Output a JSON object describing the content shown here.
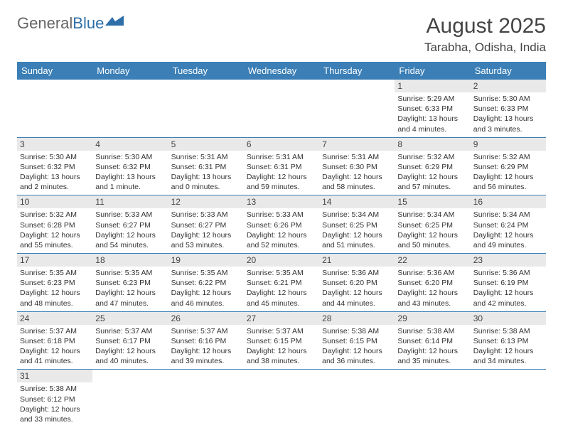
{
  "logo": {
    "general": "General",
    "blue": "Blue"
  },
  "title": "August 2025",
  "location": "Tarabha, Odisha, India",
  "colors": {
    "header_bg": "#3b7fb6",
    "header_text": "#ffffff",
    "daynum_bg": "#e9e9e9",
    "row_border": "#3b7fb6",
    "logo_blue": "#2f6fa8"
  },
  "typography": {
    "title_fontsize": 30,
    "location_fontsize": 17,
    "dayhead_fontsize": 13,
    "daynum_fontsize": 12,
    "body_fontsize": 10.5
  },
  "days": [
    "Sunday",
    "Monday",
    "Tuesday",
    "Wednesday",
    "Thursday",
    "Friday",
    "Saturday"
  ],
  "weeks": [
    [
      {
        "n": "",
        "sr": "",
        "ss": "",
        "dl": ""
      },
      {
        "n": "",
        "sr": "",
        "ss": "",
        "dl": ""
      },
      {
        "n": "",
        "sr": "",
        "ss": "",
        "dl": ""
      },
      {
        "n": "",
        "sr": "",
        "ss": "",
        "dl": ""
      },
      {
        "n": "",
        "sr": "",
        "ss": "",
        "dl": ""
      },
      {
        "n": "1",
        "sr": "Sunrise: 5:29 AM",
        "ss": "Sunset: 6:33 PM",
        "dl": "Daylight: 13 hours and 4 minutes."
      },
      {
        "n": "2",
        "sr": "Sunrise: 5:30 AM",
        "ss": "Sunset: 6:33 PM",
        "dl": "Daylight: 13 hours and 3 minutes."
      }
    ],
    [
      {
        "n": "3",
        "sr": "Sunrise: 5:30 AM",
        "ss": "Sunset: 6:32 PM",
        "dl": "Daylight: 13 hours and 2 minutes."
      },
      {
        "n": "4",
        "sr": "Sunrise: 5:30 AM",
        "ss": "Sunset: 6:32 PM",
        "dl": "Daylight: 13 hours and 1 minute."
      },
      {
        "n": "5",
        "sr": "Sunrise: 5:31 AM",
        "ss": "Sunset: 6:31 PM",
        "dl": "Daylight: 13 hours and 0 minutes."
      },
      {
        "n": "6",
        "sr": "Sunrise: 5:31 AM",
        "ss": "Sunset: 6:31 PM",
        "dl": "Daylight: 12 hours and 59 minutes."
      },
      {
        "n": "7",
        "sr": "Sunrise: 5:31 AM",
        "ss": "Sunset: 6:30 PM",
        "dl": "Daylight: 12 hours and 58 minutes."
      },
      {
        "n": "8",
        "sr": "Sunrise: 5:32 AM",
        "ss": "Sunset: 6:29 PM",
        "dl": "Daylight: 12 hours and 57 minutes."
      },
      {
        "n": "9",
        "sr": "Sunrise: 5:32 AM",
        "ss": "Sunset: 6:29 PM",
        "dl": "Daylight: 12 hours and 56 minutes."
      }
    ],
    [
      {
        "n": "10",
        "sr": "Sunrise: 5:32 AM",
        "ss": "Sunset: 6:28 PM",
        "dl": "Daylight: 12 hours and 55 minutes."
      },
      {
        "n": "11",
        "sr": "Sunrise: 5:33 AM",
        "ss": "Sunset: 6:27 PM",
        "dl": "Daylight: 12 hours and 54 minutes."
      },
      {
        "n": "12",
        "sr": "Sunrise: 5:33 AM",
        "ss": "Sunset: 6:27 PM",
        "dl": "Daylight: 12 hours and 53 minutes."
      },
      {
        "n": "13",
        "sr": "Sunrise: 5:33 AM",
        "ss": "Sunset: 6:26 PM",
        "dl": "Daylight: 12 hours and 52 minutes."
      },
      {
        "n": "14",
        "sr": "Sunrise: 5:34 AM",
        "ss": "Sunset: 6:25 PM",
        "dl": "Daylight: 12 hours and 51 minutes."
      },
      {
        "n": "15",
        "sr": "Sunrise: 5:34 AM",
        "ss": "Sunset: 6:25 PM",
        "dl": "Daylight: 12 hours and 50 minutes."
      },
      {
        "n": "16",
        "sr": "Sunrise: 5:34 AM",
        "ss": "Sunset: 6:24 PM",
        "dl": "Daylight: 12 hours and 49 minutes."
      }
    ],
    [
      {
        "n": "17",
        "sr": "Sunrise: 5:35 AM",
        "ss": "Sunset: 6:23 PM",
        "dl": "Daylight: 12 hours and 48 minutes."
      },
      {
        "n": "18",
        "sr": "Sunrise: 5:35 AM",
        "ss": "Sunset: 6:23 PM",
        "dl": "Daylight: 12 hours and 47 minutes."
      },
      {
        "n": "19",
        "sr": "Sunrise: 5:35 AM",
        "ss": "Sunset: 6:22 PM",
        "dl": "Daylight: 12 hours and 46 minutes."
      },
      {
        "n": "20",
        "sr": "Sunrise: 5:35 AM",
        "ss": "Sunset: 6:21 PM",
        "dl": "Daylight: 12 hours and 45 minutes."
      },
      {
        "n": "21",
        "sr": "Sunrise: 5:36 AM",
        "ss": "Sunset: 6:20 PM",
        "dl": "Daylight: 12 hours and 44 minutes."
      },
      {
        "n": "22",
        "sr": "Sunrise: 5:36 AM",
        "ss": "Sunset: 6:20 PM",
        "dl": "Daylight: 12 hours and 43 minutes."
      },
      {
        "n": "23",
        "sr": "Sunrise: 5:36 AM",
        "ss": "Sunset: 6:19 PM",
        "dl": "Daylight: 12 hours and 42 minutes."
      }
    ],
    [
      {
        "n": "24",
        "sr": "Sunrise: 5:37 AM",
        "ss": "Sunset: 6:18 PM",
        "dl": "Daylight: 12 hours and 41 minutes."
      },
      {
        "n": "25",
        "sr": "Sunrise: 5:37 AM",
        "ss": "Sunset: 6:17 PM",
        "dl": "Daylight: 12 hours and 40 minutes."
      },
      {
        "n": "26",
        "sr": "Sunrise: 5:37 AM",
        "ss": "Sunset: 6:16 PM",
        "dl": "Daylight: 12 hours and 39 minutes."
      },
      {
        "n": "27",
        "sr": "Sunrise: 5:37 AM",
        "ss": "Sunset: 6:15 PM",
        "dl": "Daylight: 12 hours and 38 minutes."
      },
      {
        "n": "28",
        "sr": "Sunrise: 5:38 AM",
        "ss": "Sunset: 6:15 PM",
        "dl": "Daylight: 12 hours and 36 minutes."
      },
      {
        "n": "29",
        "sr": "Sunrise: 5:38 AM",
        "ss": "Sunset: 6:14 PM",
        "dl": "Daylight: 12 hours and 35 minutes."
      },
      {
        "n": "30",
        "sr": "Sunrise: 5:38 AM",
        "ss": "Sunset: 6:13 PM",
        "dl": "Daylight: 12 hours and 34 minutes."
      }
    ],
    [
      {
        "n": "31",
        "sr": "Sunrise: 5:38 AM",
        "ss": "Sunset: 6:12 PM",
        "dl": "Daylight: 12 hours and 33 minutes."
      },
      {
        "n": "",
        "sr": "",
        "ss": "",
        "dl": ""
      },
      {
        "n": "",
        "sr": "",
        "ss": "",
        "dl": ""
      },
      {
        "n": "",
        "sr": "",
        "ss": "",
        "dl": ""
      },
      {
        "n": "",
        "sr": "",
        "ss": "",
        "dl": ""
      },
      {
        "n": "",
        "sr": "",
        "ss": "",
        "dl": ""
      },
      {
        "n": "",
        "sr": "",
        "ss": "",
        "dl": ""
      }
    ]
  ]
}
